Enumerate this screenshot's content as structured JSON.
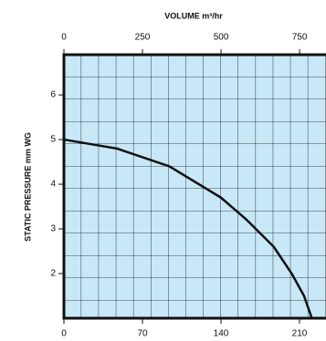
{
  "chart_data": {
    "type": "line",
    "x_top_label": "VOLUME m³/hr",
    "ylabel": "STATIC PRESSURE mm WG",
    "x": [
      0,
      47,
      94,
      140,
      163,
      187,
      203,
      214,
      221
    ],
    "series": [
      {
        "color": "#111111",
        "values": [
          5,
          4.8,
          4.4,
          3.7,
          3.2,
          2.6,
          2.0,
          1.5,
          1.0
        ]
      }
    ],
    "xlim": [
      0,
      233.6
    ],
    "xticks": [
      0,
      70,
      140,
      210
    ],
    "x2lim": [
      0,
      834
    ],
    "x2ticks": [
      0,
      250,
      500,
      750
    ],
    "ylim": [
      1,
      6.9
    ],
    "yticks": [
      2,
      3,
      4,
      5,
      6
    ],
    "grid": true
  }
}
